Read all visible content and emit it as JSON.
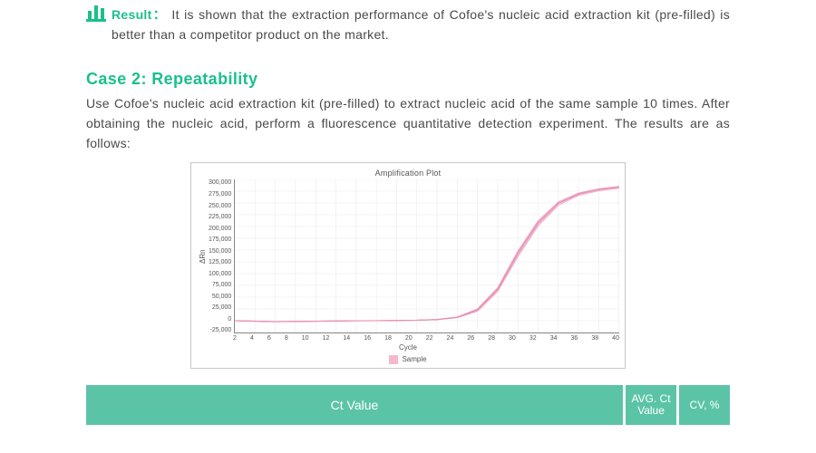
{
  "result": {
    "label": "Result：",
    "text": "It is shown that the extraction performance of Cofoe's nucleic acid extraction kit (pre-filled) is better than a competitor product on the market.",
    "icon_color": "#1bbf8c"
  },
  "case": {
    "title": "Case 2:  Repeatability",
    "description": "Use Cofoe's nucleic acid extraction kit (pre-filled) to extract nucleic acid of the same sample 10 times. After obtaining the nucleic acid, perform a fluorescence quantitative detection experiment. The results are as follows:"
  },
  "chart": {
    "type": "line",
    "title": "Amplification Plot",
    "xlabel": "Cycle",
    "ylabel": "ΔRn",
    "legend_label": "Sample",
    "legend_color": "#f6b8cf",
    "line_color": "#e890b5",
    "line_width": 1,
    "grid_color": "#d8d8d8",
    "background_color": "#ffffff",
    "xlim": [
      2,
      40
    ],
    "ylim": [
      -25000,
      300000
    ],
    "xticks": [
      2,
      4,
      6,
      8,
      10,
      12,
      14,
      16,
      18,
      20,
      22,
      24,
      26,
      28,
      30,
      32,
      34,
      36,
      38,
      40
    ],
    "yticks": [
      300000,
      275000,
      250000,
      225000,
      200000,
      175000,
      150000,
      125000,
      100000,
      75000,
      50000,
      25000,
      0,
      -25000
    ],
    "ytick_labels": [
      "300,000",
      "275,000",
      "250,000",
      "225,000",
      "200,000",
      "175,000",
      "150,000",
      "125,000",
      "100,000",
      "75,000",
      "50,000",
      "25,000",
      "0",
      "-25,000"
    ],
    "series_x": [
      2,
      4,
      6,
      8,
      10,
      12,
      14,
      16,
      18,
      20,
      22,
      24,
      26,
      28,
      30,
      32,
      34,
      36,
      38,
      40
    ],
    "series": [
      [
        0,
        -1000,
        -2000,
        -1500,
        -1000,
        -500,
        0,
        0,
        500,
        1000,
        2500,
        7000,
        22000,
        65000,
        140000,
        205000,
        248000,
        268000,
        278000,
        283000
      ],
      [
        0,
        -800,
        -1800,
        -1400,
        -900,
        -400,
        0,
        200,
        700,
        1300,
        3000,
        8000,
        25000,
        70000,
        148000,
        212000,
        252000,
        271000,
        280000,
        285000
      ],
      [
        0,
        -1200,
        -2200,
        -1700,
        -1200,
        -700,
        -200,
        0,
        400,
        900,
        2200,
        6500,
        20000,
        62000,
        136000,
        201000,
        245000,
        266000,
        276000,
        281000
      ],
      [
        0,
        -900,
        -1900,
        -1500,
        -1100,
        -600,
        -100,
        100,
        600,
        1100,
        2700,
        7500,
        24000,
        68000,
        145000,
        209000,
        250000,
        270000,
        279000,
        284000
      ],
      [
        0,
        -1100,
        -2100,
        -1600,
        -1150,
        -650,
        -150,
        50,
        500,
        1000,
        2400,
        7200,
        23000,
        66500,
        143000,
        207000,
        249000,
        269000,
        278500,
        283500
      ],
      [
        0,
        -1000,
        -2000,
        -1550,
        -1050,
        -550,
        -50,
        100,
        550,
        1050,
        2600,
        7300,
        23500,
        67000,
        144000,
        208000,
        249500,
        269500,
        279000,
        284000
      ]
    ]
  },
  "table": {
    "bg": "#5cc4a6",
    "fg": "#ffffff",
    "cells": {
      "ct_value": "Ct Value",
      "avg": "AVG. Ct Value",
      "cv": "CV, %"
    }
  }
}
